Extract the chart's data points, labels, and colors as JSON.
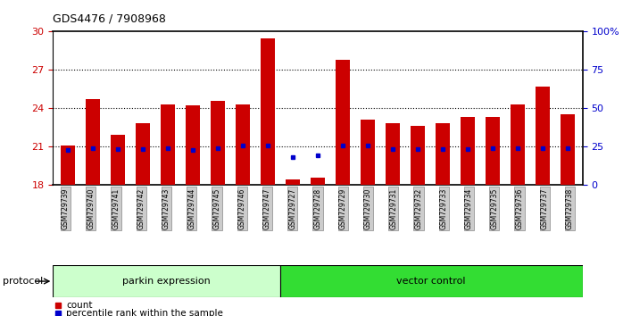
{
  "title": "GDS4476 / 7908968",
  "samples": [
    "GSM729739",
    "GSM729740",
    "GSM729741",
    "GSM729742",
    "GSM729743",
    "GSM729744",
    "GSM729745",
    "GSM729746",
    "GSM729747",
    "GSM729727",
    "GSM729728",
    "GSM729729",
    "GSM729730",
    "GSM729731",
    "GSM729732",
    "GSM729733",
    "GSM729734",
    "GSM729735",
    "GSM729736",
    "GSM729737",
    "GSM729738"
  ],
  "bar_values": [
    21.1,
    24.7,
    21.9,
    22.8,
    24.3,
    24.2,
    24.6,
    24.3,
    29.5,
    18.4,
    18.6,
    27.8,
    23.1,
    22.8,
    22.6,
    22.8,
    23.3,
    23.3,
    24.3,
    25.7,
    23.5
  ],
  "percentile_values": [
    20.7,
    20.9,
    20.8,
    20.8,
    20.9,
    20.75,
    20.9,
    21.1,
    21.1,
    20.2,
    20.3,
    21.1,
    21.1,
    20.8,
    20.8,
    20.8,
    20.8,
    20.85,
    20.9,
    20.9,
    20.9
  ],
  "bar_color": "#cc0000",
  "percentile_color": "#0000cc",
  "ylim_left": [
    18,
    30
  ],
  "ylim_right": [
    0,
    100
  ],
  "yticks_left": [
    18,
    21,
    24,
    27,
    30
  ],
  "ytick_labels_right": [
    "0",
    "25",
    "50",
    "75",
    "100%"
  ],
  "ytick_values_right": [
    0,
    25,
    50,
    75,
    100
  ],
  "grid_values": [
    21,
    24,
    27
  ],
  "group1_label": "parkin expression",
  "group2_label": "vector control",
  "group1_color": "#ccffcc",
  "group2_color": "#33dd33",
  "group1_count": 9,
  "group2_count": 12,
  "protocol_label": "protocol",
  "legend_bar_label": "count",
  "legend_pct_label": "percentile rank within the sample",
  "background_color": "#ffffff",
  "tick_bg_color": "#cccccc"
}
